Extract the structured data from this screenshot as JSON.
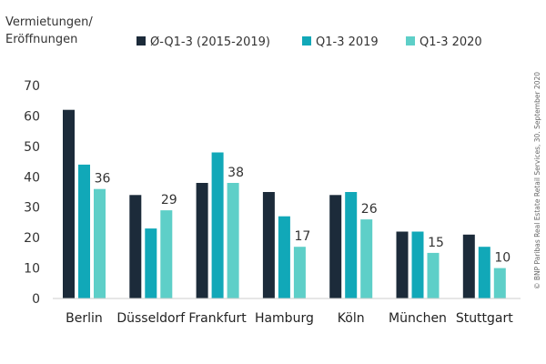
{
  "chart_data": {
    "type": "bar",
    "ylabel": [
      "Vermietungen/",
      "Eröffnungen"
    ],
    "categories": [
      "Berlin",
      "Düsseldorf",
      "Frankfurt",
      "Hamburg",
      "Köln",
      "München",
      "Stuttgart"
    ],
    "series": [
      {
        "name": "Ø-Q1-3 (2015-2019)",
        "color": "#1c2b3a",
        "values": [
          62,
          34,
          38,
          35,
          34,
          22,
          21
        ]
      },
      {
        "name": "Q1-3 2019",
        "color": "#11a8b8",
        "values": [
          44,
          23,
          48,
          27,
          35,
          22,
          17
        ]
      },
      {
        "name": "Q1-3 2020",
        "color": "#5ecfc8",
        "values": [
          36,
          29,
          38,
          17,
          26,
          15,
          10
        ]
      }
    ],
    "data_labels": [
      "36",
      "29",
      "38",
      "17",
      "26",
      "15",
      "10"
    ],
    "ylim": [
      0,
      70
    ],
    "yticks": [
      0,
      10,
      20,
      30,
      40,
      50,
      60,
      70
    ],
    "grid": false,
    "legend_position": "top"
  },
  "source": "© BNP Paribas Real Estate Retail Services, 30. September 2020"
}
